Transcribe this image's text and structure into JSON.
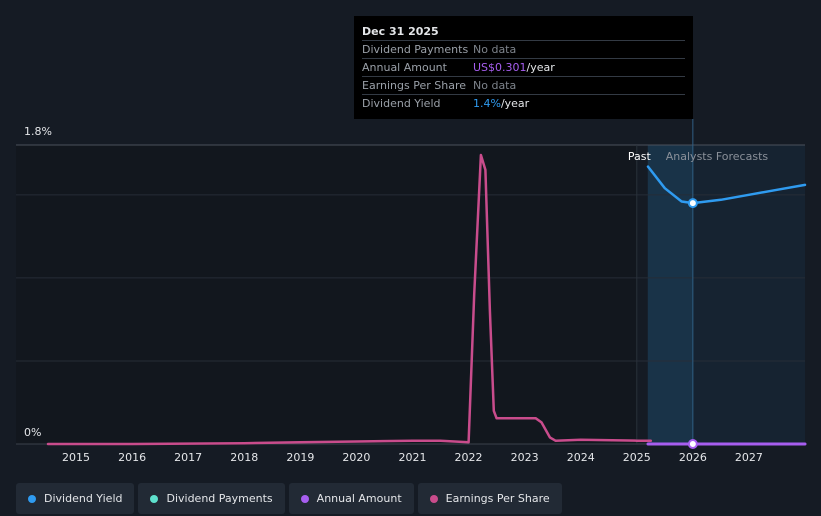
{
  "tooltip": {
    "date": "Dec 31 2025",
    "rows": [
      {
        "label": "Dividend Payments",
        "value": "No data",
        "unit": "",
        "color": "#7d838b"
      },
      {
        "label": "Annual Amount",
        "value": "US$0.301",
        "unit": "/year",
        "color": "#a75ef0"
      },
      {
        "label": "Earnings Per Share",
        "value": "No data",
        "unit": "",
        "color": "#7d838b"
      },
      {
        "label": "Dividend Yield",
        "value": "1.4%",
        "unit": "/year",
        "color": "#2f9bf0"
      }
    ]
  },
  "regions": {
    "past": "Past",
    "forecast": "Analysts Forecasts"
  },
  "legend": [
    {
      "label": "Dividend Yield",
      "color": "#2f9bf0"
    },
    {
      "label": "Dividend Payments",
      "color": "#5ee0cd"
    },
    {
      "label": "Annual Amount",
      "color": "#a75ef0"
    },
    {
      "label": "Earnings Per Share",
      "color": "#c94c8c"
    }
  ],
  "chart_data": {
    "type": "line",
    "y_tick_labels": [
      "1.8%",
      "0%"
    ],
    "ylim": [
      0,
      1.8
    ],
    "x_tick_labels": [
      "2015",
      "2016",
      "2017",
      "2018",
      "2019",
      "2020",
      "2021",
      "2022",
      "2023",
      "2024",
      "2025",
      "2026",
      "2027"
    ],
    "xlim": [
      2014.5,
      2028.0
    ],
    "grid": true,
    "forecast_start": 2025.0,
    "highlight_x": 2026.0,
    "series": [
      {
        "name": "Earnings Per Share",
        "color": "#c94c8c",
        "x": [
          2014.5,
          2016.0,
          2018.0,
          2019.0,
          2020.0,
          2021.0,
          2021.5,
          2022.0,
          2022.1,
          2022.22,
          2022.3,
          2022.38,
          2022.45,
          2022.5,
          2023.2,
          2023.3,
          2023.45,
          2023.55,
          2024.0,
          2025.0,
          2025.25
        ],
        "y": [
          0.0,
          0.0,
          0.005,
          0.01,
          0.015,
          0.02,
          0.02,
          0.01,
          0.9,
          1.74,
          1.65,
          0.8,
          0.2,
          0.155,
          0.155,
          0.13,
          0.04,
          0.02,
          0.025,
          0.02,
          0.02
        ]
      },
      {
        "name": "Dividend Yield",
        "color": "#2f9bf0",
        "x": [
          2025.2,
          2025.5,
          2025.8,
          2026.0,
          2026.5,
          2027.0,
          2027.5,
          2028.0
        ],
        "y": [
          1.67,
          1.54,
          1.46,
          1.45,
          1.47,
          1.5,
          1.53,
          1.56
        ]
      },
      {
        "name": "Annual Amount",
        "color": "#a75ef0",
        "x": [
          2025.2,
          2028.0
        ],
        "y": [
          0.0,
          0.0
        ]
      }
    ],
    "highlight_points": [
      {
        "series": "Dividend Yield",
        "x": 2026.0,
        "y": 1.45
      },
      {
        "series": "Annual Amount",
        "x": 2026.0,
        "y": 0.0
      }
    ]
  }
}
